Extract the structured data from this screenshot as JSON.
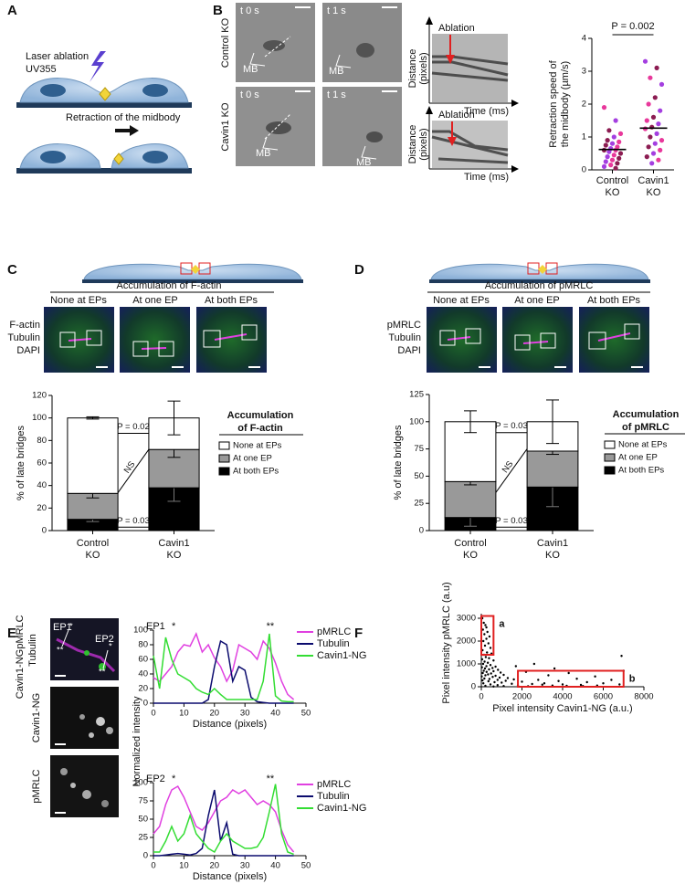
{
  "panels": {
    "a": {
      "letter": "A",
      "laser": "Laser ablation",
      "uv": "UV355",
      "retraction": "Retraction of the midbody"
    },
    "b": {
      "letter": "B",
      "t0": "t 0 s",
      "t1": "t 1 s",
      "mb": "MB",
      "rows": [
        "Control KO",
        "Cavin1 KO"
      ],
      "ablation": "Ablation",
      "distance": "Distance (pixels)",
      "time": "Time (ms)"
    },
    "c": {
      "letter": "C",
      "header": "Accumulation of F-actin",
      "columns": [
        "None at EPs",
        "At one EP",
        "At both EPs"
      ],
      "channels": [
        "F-actin",
        "Tubulin",
        "DAPI"
      ],
      "channel_colors": [
        "#22cc22",
        "#e040e0",
        "#3050ff"
      ]
    },
    "d": {
      "letter": "D",
      "header": "Accumulation of pMRLC",
      "columns": [
        "None at EPs",
        "At one EP",
        "At both EPs"
      ],
      "channels": [
        "pMRLC",
        "Tubulin",
        "DAPI"
      ],
      "channel_colors": [
        "#22cc22",
        "#e040e0",
        "#3050ff"
      ]
    },
    "e": {
      "letter": "E",
      "channels": [
        "pMRLC",
        "Tubulin",
        "Cavin1-NG"
      ],
      "channel_colors": [
        "#e040e0",
        "#3050ff",
        "#22cc22"
      ],
      "image_labels": [
        "Cavin1-NG",
        "pMRLC"
      ],
      "image_label_colors": [
        "#22cc22",
        "#e040e0"
      ],
      "ep": [
        "EP1",
        "EP2"
      ],
      "stars": [
        "*",
        "**"
      ],
      "ylabel": "Normalized intensity"
    },
    "f": {
      "letter": "F"
    }
  },
  "chart_data": [
    {
      "type": "strip",
      "ylabel": [
        "Retraction speed of",
        "the midbody (µm/s)"
      ],
      "categories": [
        "Control KO",
        "Cavin1 KO"
      ],
      "values": [
        [
          1.9,
          1.5,
          1.2,
          1.1,
          1.0,
          0.9,
          0.85,
          0.8,
          0.75,
          0.7,
          0.65,
          0.6,
          0.6,
          0.55,
          0.5,
          0.45,
          0.4,
          0.35,
          0.3,
          0.25,
          0.2,
          0.15,
          0.1,
          0.05
        ],
        [
          3.3,
          3.1,
          2.8,
          2.6,
          2.2,
          2.0,
          1.8,
          1.6,
          1.5,
          1.4,
          1.3,
          1.25,
          1.1,
          1.0,
          0.9,
          0.8,
          0.7,
          0.6,
          0.5,
          0.4,
          0.3,
          0.2
        ]
      ],
      "medians": [
        0.62,
        1.27
      ],
      "colors": [
        "#e8389b",
        "#a43fe0",
        "#8c1c52"
      ],
      "median_color": "#000000",
      "ylim": [
        0,
        4
      ],
      "yticks": [
        0,
        1,
        2,
        3,
        4
      ],
      "p_value": "P = 0.002"
    },
    {
      "type": "stacked_bar",
      "ylabel": "% of late bridges",
      "categories": [
        "Control KO",
        "Cavin1 KO"
      ],
      "legend_title": "Accumulation of F-actin",
      "series": [
        {
          "name": "At both EPs",
          "color": "#000000",
          "values": [
            10,
            38
          ],
          "errors": [
            2,
            12
          ]
        },
        {
          "name": "At one EP",
          "color": "#999999",
          "values": [
            23,
            34
          ],
          "errors": [
            4,
            7
          ]
        },
        {
          "name": "None at EPs",
          "color": "#ffffff",
          "values": [
            67,
            28
          ],
          "errors": [
            1,
            15
          ]
        }
      ],
      "ylim": [
        0,
        120
      ],
      "yticks": [
        0,
        20,
        40,
        60,
        80,
        100,
        120
      ],
      "annotations": [
        "P = 0.02",
        "NS",
        "P = 0.03"
      ]
    },
    {
      "type": "stacked_bar",
      "ylabel": "% of late bridges",
      "categories": [
        "Control KO",
        "Cavin1 KO"
      ],
      "legend_title": "Accumulation of pMRLC",
      "series": [
        {
          "name": "At both EPs",
          "color": "#000000",
          "values": [
            12,
            40
          ],
          "errors": [
            8,
            18
          ]
        },
        {
          "name": "At one EP",
          "color": "#999999",
          "values": [
            33,
            33
          ],
          "errors": [
            3,
            3
          ]
        },
        {
          "name": "None at EPs",
          "color": "#ffffff",
          "values": [
            55,
            27
          ],
          "errors": [
            10,
            20
          ]
        }
      ],
      "ylim": [
        0,
        125
      ],
      "yticks": [
        0,
        25,
        50,
        75,
        100,
        125
      ],
      "annotations": [
        "P = 0.03",
        "NS",
        "P = 0.03"
      ]
    },
    {
      "type": "line",
      "title": "EP1",
      "annotations": [
        "*",
        "**"
      ],
      "xlabel": "Distance (pixels)",
      "x": [
        0,
        2,
        4,
        6,
        8,
        10,
        12,
        14,
        16,
        18,
        20,
        22,
        24,
        26,
        28,
        30,
        32,
        34,
        36,
        38,
        40,
        42,
        44,
        46
      ],
      "series": [
        {
          "name": "pMRLC",
          "color": "#e040e0",
          "values": [
            35,
            30,
            40,
            50,
            70,
            80,
            78,
            95,
            70,
            80,
            62,
            50,
            30,
            45,
            80,
            75,
            70,
            60,
            85,
            75,
            55,
            30,
            12,
            5
          ]
        },
        {
          "name": "Tubulin",
          "color": "#0b0b6e",
          "values": [
            0,
            0,
            0,
            0,
            0,
            0,
            0,
            0,
            0,
            5,
            50,
            85,
            80,
            30,
            50,
            45,
            8,
            2,
            1,
            0,
            0,
            0,
            0,
            0
          ]
        },
        {
          "name": "Cavin1-NG",
          "color": "#33dd33",
          "values": [
            65,
            20,
            90,
            60,
            40,
            35,
            30,
            20,
            15,
            12,
            20,
            12,
            5,
            5,
            5,
            5,
            5,
            5,
            30,
            95,
            10,
            3,
            2,
            2
          ]
        }
      ],
      "xlim": [
        0,
        50
      ],
      "xticks": [
        0,
        10,
        20,
        30,
        40,
        50
      ],
      "ylim": [
        0,
        100
      ],
      "yticks": [
        0,
        20,
        40,
        60,
        80,
        100
      ]
    },
    {
      "type": "line",
      "title": "EP2",
      "annotations": [
        "*",
        "**"
      ],
      "xlabel": "Distance (pixels)",
      "x": [
        0,
        2,
        4,
        6,
        8,
        10,
        12,
        14,
        16,
        18,
        20,
        22,
        24,
        26,
        28,
        30,
        32,
        34,
        36,
        38,
        40,
        42,
        44,
        46
      ],
      "series": [
        {
          "name": "pMRLC",
          "color": "#e040e0",
          "values": [
            30,
            40,
            70,
            90,
            95,
            80,
            60,
            40,
            35,
            45,
            60,
            75,
            80,
            90,
            85,
            90,
            80,
            70,
            75,
            70,
            60,
            35,
            15,
            5
          ]
        },
        {
          "name": "Tubulin",
          "color": "#0b0b6e",
          "values": [
            0,
            0,
            1,
            2,
            3,
            2,
            1,
            3,
            10,
            55,
            90,
            20,
            45,
            2,
            0,
            0,
            0,
            0,
            0,
            0,
            0,
            0,
            0,
            0
          ]
        },
        {
          "name": "Cavin1-NG",
          "color": "#33dd33",
          "values": [
            5,
            5,
            20,
            40,
            20,
            30,
            55,
            30,
            20,
            10,
            5,
            20,
            30,
            20,
            15,
            10,
            10,
            12,
            25,
            60,
            98,
            30,
            5,
            2
          ]
        }
      ],
      "xlim": [
        0,
        50
      ],
      "xticks": [
        0,
        10,
        20,
        30,
        40,
        50
      ],
      "ylim": [
        0,
        100
      ],
      "yticks": [
        0,
        25,
        50,
        75,
        100
      ]
    },
    {
      "type": "scatter",
      "xlabel": "Pixel intensity Cavin1-NG (a.u.)",
      "ylabel": "Pixel intensity pMRLC (a.u)",
      "color": "#000000",
      "x": [
        50,
        120,
        200,
        80,
        300,
        150,
        400,
        250,
        100,
        350,
        180,
        450,
        60,
        280,
        500,
        130,
        220,
        380,
        40,
        600,
        160,
        320,
        90,
        450,
        250,
        700,
        30,
        550,
        180,
        380,
        820,
        120,
        600,
        260,
        950,
        70,
        480,
        330,
        1100,
        200,
        700,
        20,
        560,
        900,
        1300,
        150,
        400,
        1600,
        800,
        60,
        1200,
        350,
        2000,
        650,
        1000,
        100,
        1500,
        2500,
        450,
        3000,
        800,
        1800,
        200,
        3500,
        1100,
        4200,
        2300,
        600,
        5000,
        2800,
        3300,
        3800,
        4300,
        4700,
        5200,
        5600,
        6000,
        6400,
        6800,
        2200,
        3100,
        4000,
        4900,
        5700,
        1700,
        2600,
        3600,
        6900,
        7000,
        250
      ],
      "y": [
        3000,
        2800,
        2700,
        2500,
        2400,
        2300,
        2200,
        2100,
        2000,
        1900,
        1800,
        1700,
        1600,
        1500,
        1450,
        1400,
        1300,
        1250,
        1200,
        1150,
        1100,
        1050,
        1000,
        950,
        900,
        880,
        850,
        820,
        800,
        760,
        740,
        700,
        680,
        650,
        620,
        600,
        580,
        540,
        520,
        500,
        480,
        450,
        430,
        400,
        380,
        360,
        340,
        320,
        300,
        280,
        260,
        240,
        220,
        200,
        180,
        150,
        130,
        120,
        100,
        90,
        70,
        60,
        40,
        50,
        30,
        40,
        20,
        10,
        30,
        300,
        500,
        250,
        600,
        350,
        200,
        450,
        150,
        300,
        100,
        650,
        150,
        100,
        80,
        50,
        900,
        1000,
        800,
        1350,
        700,
        2600
      ],
      "regions": [
        {
          "label": "a",
          "color": "#e02020",
          "x": [
            0,
            600
          ],
          "y": [
            1400,
            3100
          ]
        },
        {
          "label": "b",
          "color": "#e02020",
          "x": [
            1800,
            7000
          ],
          "y": [
            0,
            700
          ]
        }
      ],
      "xlim": [
        0,
        8000
      ],
      "xticks": [
        0,
        2000,
        4000,
        6000,
        8000
      ],
      "ylim": [
        0,
        3200
      ],
      "yticks": [
        0,
        1000,
        2000,
        3000
      ]
    }
  ]
}
